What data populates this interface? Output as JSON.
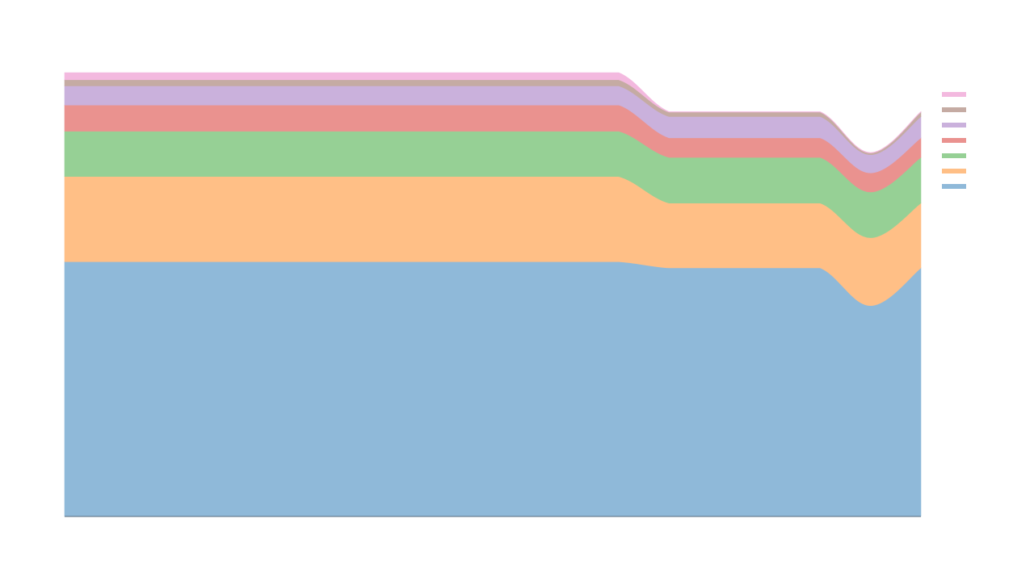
{
  "chart_data": {
    "type": "area",
    "stacked": true,
    "title": "",
    "xlabel": "",
    "ylabel": "",
    "x": [
      0,
      1,
      2,
      3,
      4,
      5,
      6,
      7,
      8,
      9,
      10,
      11,
      12,
      13,
      14,
      15,
      16,
      17
    ],
    "ylim": [
      0,
      100
    ],
    "grid": false,
    "legend_position": "right",
    "series": [
      {
        "color": "#8fb9d9",
        "values": [
          57.4,
          57.4,
          57.4,
          57.4,
          57.4,
          57.4,
          57.4,
          57.4,
          57.4,
          57.4,
          57.4,
          57.4,
          56.0,
          56.0,
          56.0,
          56.0,
          47.5,
          56.0
        ]
      },
      {
        "color": "#ffbf86",
        "values": [
          19.2,
          19.2,
          19.2,
          19.2,
          19.2,
          19.2,
          19.2,
          19.2,
          19.2,
          19.2,
          19.2,
          19.2,
          14.6,
          14.6,
          14.6,
          14.6,
          15.3,
          14.6
        ]
      },
      {
        "color": "#96d095",
        "values": [
          10.2,
          10.2,
          10.2,
          10.2,
          10.2,
          10.2,
          10.2,
          10.2,
          10.2,
          10.2,
          10.2,
          10.2,
          10.3,
          10.3,
          10.3,
          10.3,
          10.3,
          10.3
        ]
      },
      {
        "color": "#ea928f",
        "values": [
          5.9,
          5.9,
          5.9,
          5.9,
          5.9,
          5.9,
          5.9,
          5.9,
          5.9,
          5.9,
          5.9,
          5.9,
          4.4,
          4.4,
          4.4,
          4.4,
          4.3,
          4.4
        ]
      },
      {
        "color": "#cab1dc",
        "values": [
          4.3,
          4.3,
          4.3,
          4.3,
          4.3,
          4.3,
          4.3,
          4.3,
          4.3,
          4.3,
          4.3,
          4.3,
          4.8,
          4.8,
          4.8,
          4.8,
          4.1,
          4.8
        ]
      },
      {
        "color": "#c5aba3",
        "values": [
          1.4,
          1.4,
          1.4,
          1.4,
          1.4,
          1.4,
          1.4,
          1.4,
          1.4,
          1.4,
          1.4,
          1.4,
          1.0,
          1.0,
          1.0,
          1.0,
          0.4,
          1.0
        ]
      },
      {
        "color": "#f3b9df",
        "values": [
          1.6,
          1.6,
          1.6,
          1.6,
          1.6,
          1.6,
          1.6,
          1.6,
          1.6,
          1.6,
          1.6,
          1.6,
          0.1,
          0.1,
          0.1,
          0.1,
          0.1,
          0.1
        ]
      }
    ]
  },
  "axis": {
    "color": "#6b7f91"
  }
}
